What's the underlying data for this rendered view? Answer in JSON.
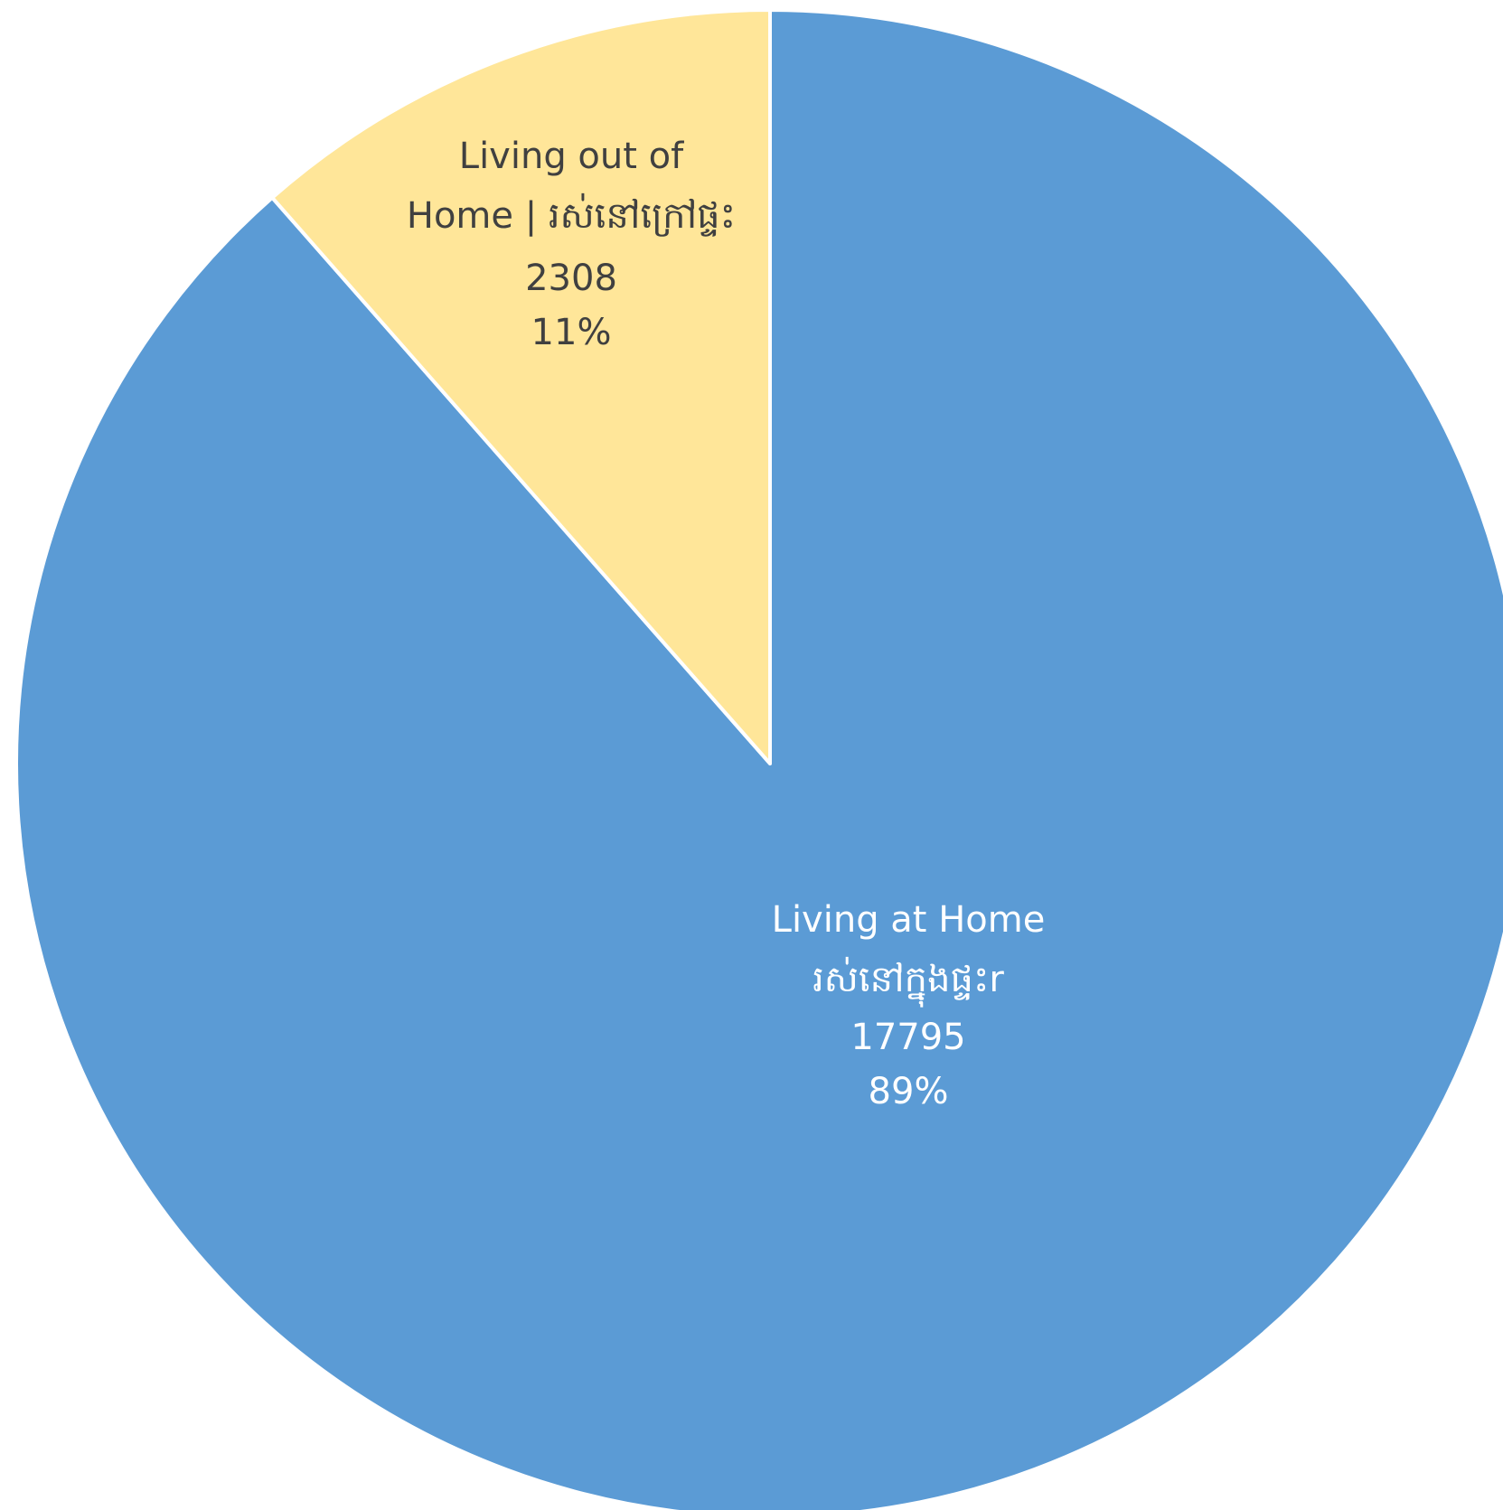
{
  "chart_data": {
    "type": "pie",
    "colors": {
      "Living at Home": "#5b9bd5",
      "Living out of Home": "#ffe699",
      "border": "#ffffff",
      "label_on_blue": "#ffffff",
      "label_on_yellow": "#404040"
    },
    "slices": [
      {
        "name": "Living at Home",
        "label_lines": [
          "Living at Home",
          "រស់នៅក្នុងផ្ទះr"
        ],
        "value": 17795,
        "percent": "89%"
      },
      {
        "name": "Living out of Home",
        "label_lines": [
          "Living out of",
          "Home | រស់នៅក្រៅផ្ទះ"
        ],
        "value": 2308,
        "percent": "11%"
      }
    ]
  }
}
